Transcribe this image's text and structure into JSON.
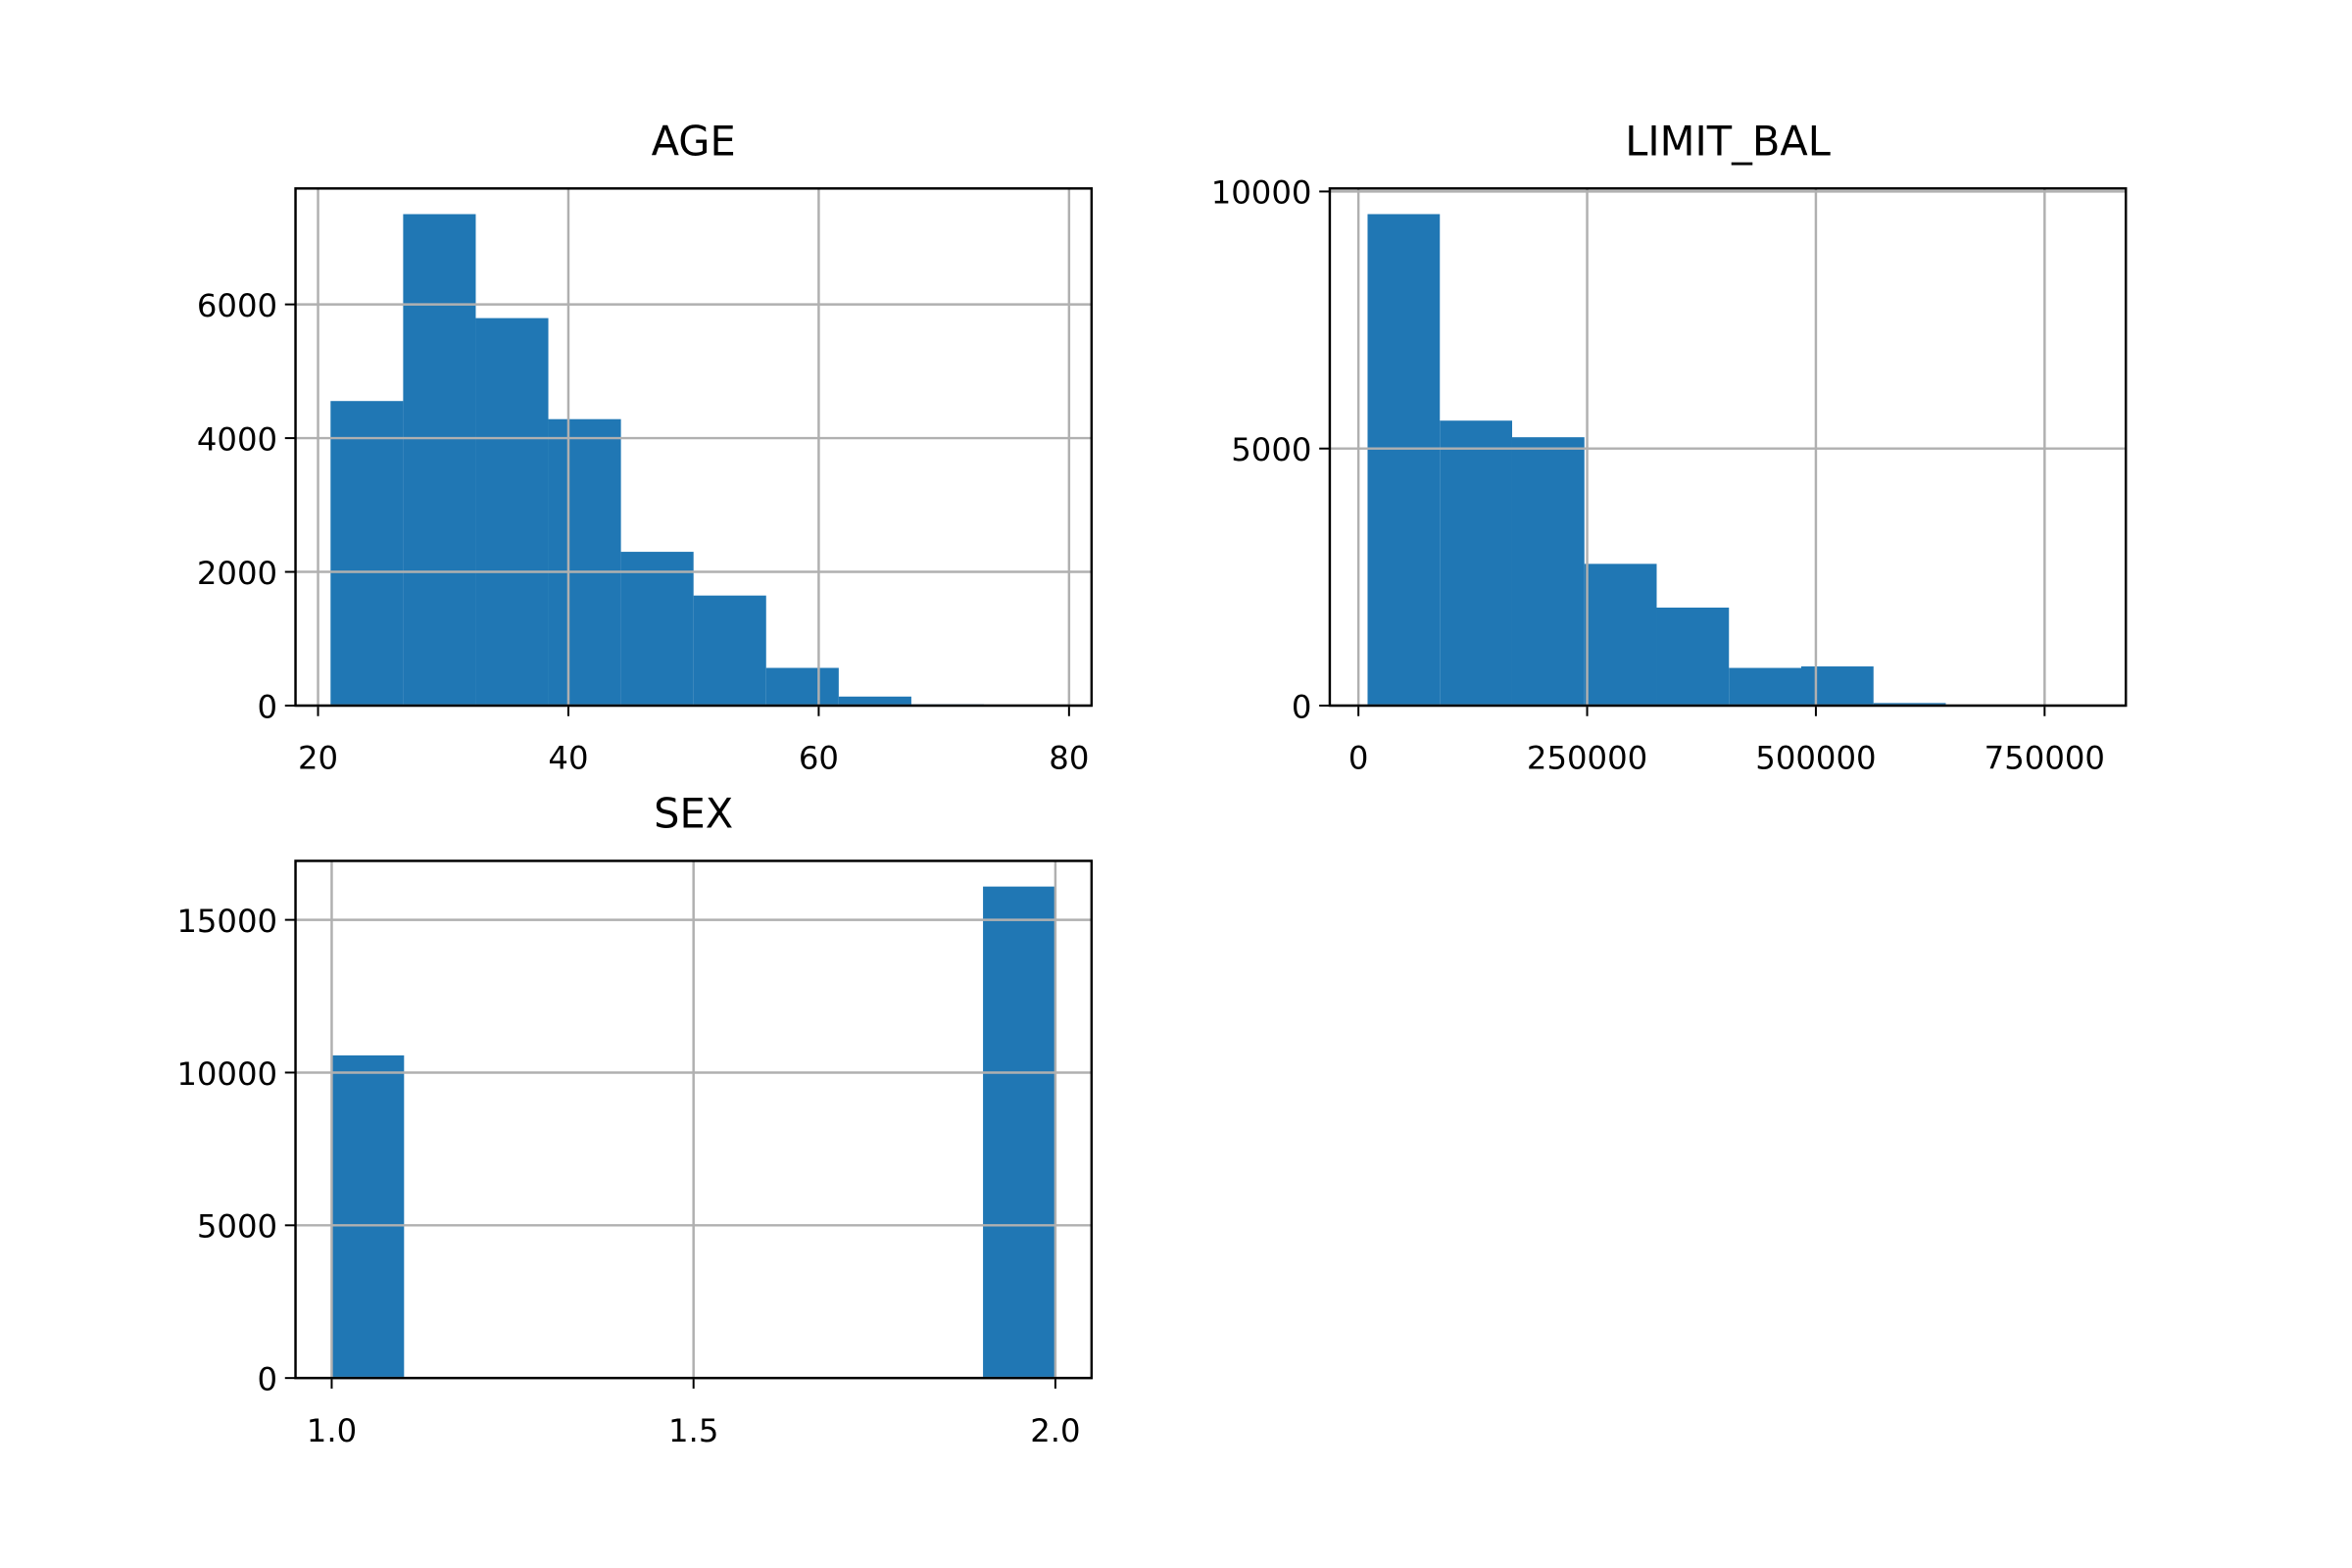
{
  "chart_data": [
    {
      "type": "histogram",
      "title": "AGE",
      "color": "#2077b4",
      "grid": true,
      "bins": [
        21,
        26.8,
        32.6,
        38.4,
        44.2,
        50,
        55.8,
        61.6,
        67.4,
        73.2,
        79
      ],
      "values": [
        4555,
        7350,
        5795,
        4284,
        2300,
        1646,
        564,
        135,
        20,
        5
      ],
      "xlim": [
        18.2,
        81.8
      ],
      "xticks": [
        20,
        40,
        60,
        80
      ],
      "ylim": [
        0,
        7734
      ],
      "yticks": [
        0,
        2000,
        4000,
        6000
      ]
    },
    {
      "type": "histogram",
      "title": "LIMIT_BAL",
      "color": "#2077b4",
      "grid": true,
      "bins": [
        10000,
        89000,
        168000,
        247000,
        326000,
        405000,
        484000,
        563000,
        642000,
        721000,
        800000
      ],
      "values": [
        9560,
        5543,
        5220,
        2757,
        1906,
        733,
        762,
        50,
        10,
        2
      ],
      "xlim": [
        -31300,
        838800
      ],
      "xticks": [
        0,
        250000,
        500000,
        750000
      ],
      "ylim": [
        0,
        10059
      ],
      "yticks": [
        0,
        5000,
        10000
      ]
    },
    {
      "type": "histogram",
      "title": "SEX",
      "color": "#2077b4",
      "grid": true,
      "bins": [
        1.0,
        1.1,
        1.2,
        1.3,
        1.4,
        1.5,
        1.6,
        1.7,
        1.8,
        1.9,
        2.0
      ],
      "values": [
        10563,
        0,
        0,
        0,
        0,
        0,
        0,
        0,
        0,
        16090
      ],
      "xlim": [
        0.95,
        2.05
      ],
      "xticks": [
        {
          "value": 1,
          "label": "1.0"
        },
        1.5,
        {
          "value": 2,
          "label": "2.0"
        }
      ],
      "ylim": [
        0,
        16930
      ],
      "yticks": [
        0,
        5000,
        10000,
        15000
      ]
    }
  ]
}
